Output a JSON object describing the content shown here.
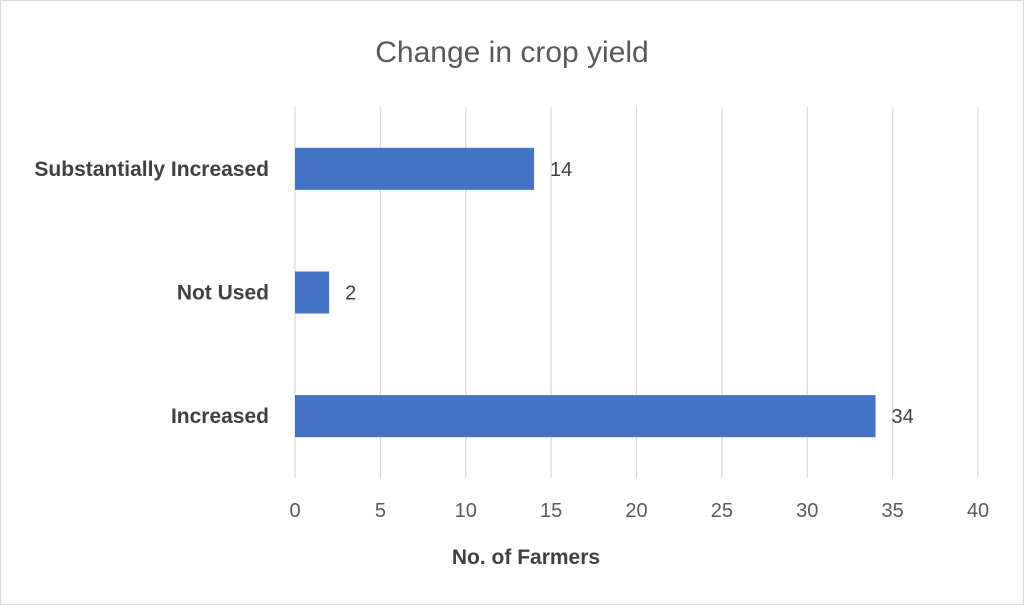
{
  "chart_data": {
    "type": "bar",
    "orientation": "horizontal",
    "title": "Change in crop yield",
    "xlabel": "No. of Farmers",
    "ylabel": "",
    "categories": [
      "Substantially Increased",
      "Not Used",
      "Increased"
    ],
    "values": [
      14,
      2,
      34
    ],
    "data_labels": [
      "14",
      "2",
      "34"
    ],
    "xlim": [
      0,
      40
    ],
    "x_ticks": [
      0,
      5,
      10,
      15,
      20,
      25,
      30,
      35,
      40
    ],
    "x_tick_labels": [
      "0",
      "5",
      "10",
      "15",
      "20",
      "25",
      "30",
      "35",
      "40"
    ],
    "grid": "vertical",
    "legend": "none",
    "bar_color": "#4472C4"
  }
}
